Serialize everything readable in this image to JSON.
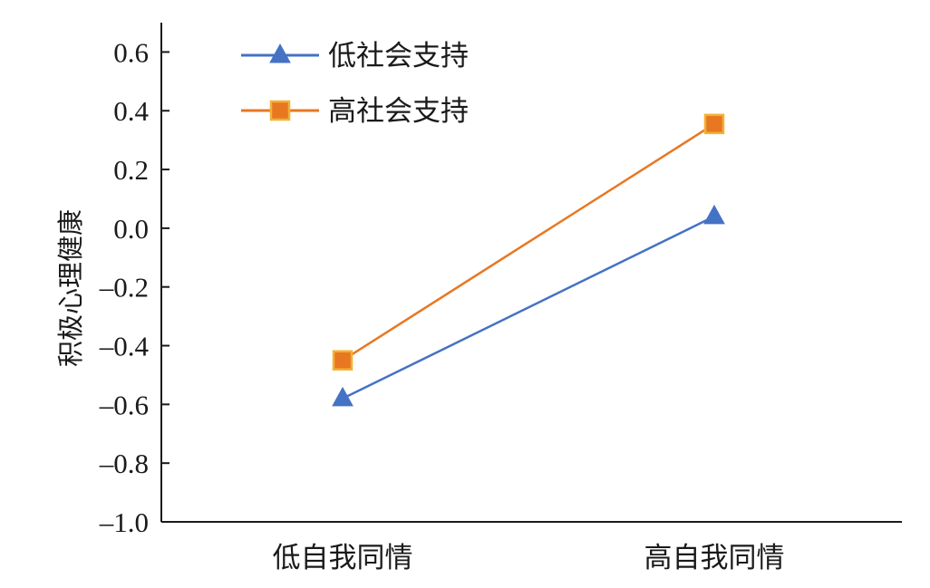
{
  "chart_data": {
    "type": "line",
    "title": "",
    "xlabel": "",
    "ylabel": "积极心理健康",
    "categories": [
      "低自我同情",
      "高自我同情"
    ],
    "ylim": [
      -1.0,
      0.7
    ],
    "yticks": [
      0.6,
      0.4,
      0.2,
      0.0,
      -0.2,
      -0.4,
      -0.6,
      -0.8,
      -1.0
    ],
    "ytick_labels": [
      "0.6",
      "0.4",
      "0.2",
      "0.0",
      "–0.2",
      "–0.4",
      "–0.6",
      "–0.8",
      "–1.0"
    ],
    "grid": false,
    "legend_position": "top-left",
    "series": [
      {
        "name": "低社会支持",
        "values": [
          -0.58,
          0.04
        ],
        "color": "#4472c4",
        "marker": "triangle"
      },
      {
        "name": "高社会支持",
        "values": [
          -0.45,
          0.355
        ],
        "color": "#e87722",
        "marker_fill": "#e87722",
        "marker_edge": "#f2b134",
        "marker": "square"
      }
    ]
  }
}
